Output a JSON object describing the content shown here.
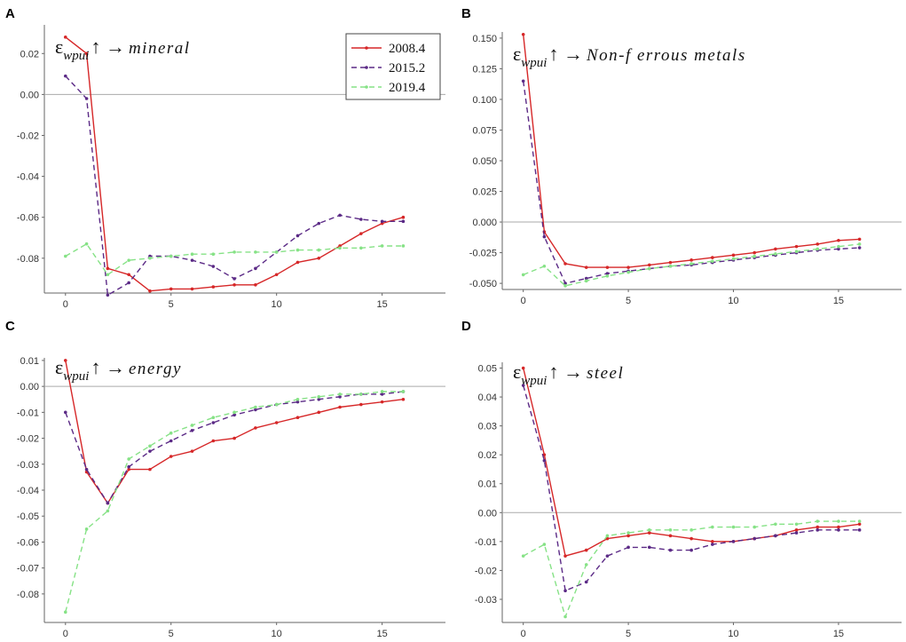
{
  "chart_data": [
    {
      "panel": "A",
      "type": "line",
      "title": "ε",
      "title_subscript": "wpui",
      "title_arrow": "↑ →",
      "title_target": "mineral",
      "xlim": [
        -1,
        18
      ],
      "ylim": [
        -0.097,
        0.034
      ],
      "x_ticks": [
        0,
        5,
        10,
        15
      ],
      "y_ticks": [
        0.02,
        0.0,
        -0.02,
        -0.04,
        -0.06,
        -0.08
      ],
      "y_tick_labels": [
        "0.02",
        "0.00",
        "-0.02",
        "-0.04",
        "-0.06",
        "-0.08"
      ],
      "x": [
        0,
        1,
        2,
        3,
        4,
        5,
        6,
        7,
        8,
        9,
        10,
        11,
        12,
        13,
        14,
        15,
        16
      ],
      "series": [
        {
          "name": "2008.4",
          "color": "#d62728",
          "dash": "",
          "values": [
            0.028,
            0.02,
            -0.085,
            -0.088,
            -0.096,
            -0.095,
            -0.095,
            -0.094,
            -0.093,
            -0.093,
            -0.088,
            -0.082,
            -0.08,
            -0.074,
            -0.068,
            -0.063,
            -0.06
          ]
        },
        {
          "name": "2015.2",
          "color": "#5b2a86",
          "dash": "6,4",
          "values": [
            0.009,
            -0.002,
            -0.098,
            -0.092,
            -0.079,
            -0.079,
            -0.081,
            -0.084,
            -0.09,
            -0.085,
            -0.077,
            -0.069,
            -0.063,
            -0.059,
            -0.061,
            -0.062,
            -0.062
          ]
        },
        {
          "name": "2019.4",
          "color": "#86e286",
          "dash": "6,4",
          "values": [
            -0.079,
            -0.073,
            -0.088,
            -0.081,
            -0.08,
            -0.079,
            -0.078,
            -0.078,
            -0.077,
            -0.077,
            -0.077,
            -0.076,
            -0.076,
            -0.075,
            -0.075,
            -0.074,
            -0.074
          ]
        }
      ],
      "legend": [
        "2008.4",
        "2015.2",
        "2019.4"
      ]
    },
    {
      "panel": "B",
      "type": "line",
      "title": "ε",
      "title_subscript": "wpui",
      "title_arrow": "↑ →",
      "title_target": "Non-f errous metals",
      "xlim": [
        -1,
        18
      ],
      "ylim": [
        -0.055,
        0.155
      ],
      "x_ticks": [
        0,
        5,
        10,
        15
      ],
      "y_ticks": [
        0.15,
        0.125,
        0.1,
        0.075,
        0.05,
        0.025,
        0.0,
        -0.025,
        -0.05
      ],
      "y_tick_labels": [
        "0.150",
        "0.125",
        "0.100",
        "0.075",
        "0.050",
        "0.025",
        "0.000",
        "-0.025",
        "-0.050"
      ],
      "x": [
        0,
        1,
        2,
        3,
        4,
        5,
        6,
        7,
        8,
        9,
        10,
        11,
        12,
        13,
        14,
        15,
        16
      ],
      "series": [
        {
          "name": "2008.4",
          "color": "#d62728",
          "dash": "",
          "values": [
            0.153,
            -0.008,
            -0.034,
            -0.037,
            -0.037,
            -0.037,
            -0.035,
            -0.033,
            -0.031,
            -0.029,
            -0.027,
            -0.025,
            -0.022,
            -0.02,
            -0.018,
            -0.015,
            -0.014
          ]
        },
        {
          "name": "2015.2",
          "color": "#5b2a86",
          "dash": "6,4",
          "values": [
            0.115,
            -0.012,
            -0.05,
            -0.046,
            -0.042,
            -0.04,
            -0.038,
            -0.036,
            -0.035,
            -0.033,
            -0.031,
            -0.029,
            -0.027,
            -0.025,
            -0.023,
            -0.022,
            -0.021
          ]
        },
        {
          "name": "2019.4",
          "color": "#86e286",
          "dash": "6,4",
          "values": [
            -0.043,
            -0.036,
            -0.052,
            -0.048,
            -0.044,
            -0.041,
            -0.038,
            -0.036,
            -0.034,
            -0.032,
            -0.03,
            -0.028,
            -0.026,
            -0.024,
            -0.022,
            -0.02,
            -0.018
          ]
        }
      ]
    },
    {
      "panel": "C",
      "type": "line",
      "title": "ε",
      "title_subscript": "wpui",
      "title_arrow": "↑ →",
      "title_target": "energy",
      "xlim": [
        -1,
        18
      ],
      "ylim": [
        -0.091,
        0.011
      ],
      "x_ticks": [
        0,
        5,
        10,
        15
      ],
      "y_ticks": [
        0.01,
        0.0,
        -0.01,
        -0.02,
        -0.03,
        -0.04,
        -0.05,
        -0.06,
        -0.07,
        -0.08
      ],
      "y_tick_labels": [
        "0.01",
        "0.00",
        "-0.01",
        "-0.02",
        "-0.03",
        "-0.04",
        "-0.05",
        "-0.06",
        "-0.07",
        "-0.08"
      ],
      "x": [
        0,
        1,
        2,
        3,
        4,
        5,
        6,
        7,
        8,
        9,
        10,
        11,
        12,
        13,
        14,
        15,
        16
      ],
      "series": [
        {
          "name": "2008.4",
          "color": "#d62728",
          "dash": "",
          "values": [
            0.01,
            -0.033,
            -0.045,
            -0.032,
            -0.032,
            -0.027,
            -0.025,
            -0.021,
            -0.02,
            -0.016,
            -0.014,
            -0.012,
            -0.01,
            -0.008,
            -0.007,
            -0.006,
            -0.005
          ]
        },
        {
          "name": "2015.2",
          "color": "#5b2a86",
          "dash": "6,4",
          "values": [
            -0.01,
            -0.032,
            -0.045,
            -0.031,
            -0.025,
            -0.021,
            -0.017,
            -0.014,
            -0.011,
            -0.009,
            -0.007,
            -0.006,
            -0.005,
            -0.004,
            -0.003,
            -0.003,
            -0.002
          ]
        },
        {
          "name": "2019.4",
          "color": "#86e286",
          "dash": "6,4",
          "values": [
            -0.087,
            -0.055,
            -0.048,
            -0.028,
            -0.023,
            -0.018,
            -0.015,
            -0.012,
            -0.01,
            -0.008,
            -0.007,
            -0.005,
            -0.004,
            -0.003,
            -0.003,
            -0.002,
            -0.002
          ]
        }
      ]
    },
    {
      "panel": "D",
      "type": "line",
      "title": "ε",
      "title_subscript": "wpui",
      "title_arrow": "↑ →",
      "title_target": "steel",
      "xlim": [
        -1,
        18
      ],
      "ylim": [
        -0.038,
        0.052
      ],
      "x_ticks": [
        0,
        5,
        10,
        15
      ],
      "y_ticks": [
        0.05,
        0.04,
        0.03,
        0.02,
        0.01,
        0.0,
        -0.01,
        -0.02,
        -0.03
      ],
      "y_tick_labels": [
        "0.05",
        "0.04",
        "0.03",
        "0.02",
        "0.01",
        "0.00",
        "-0.01",
        "-0.02",
        "-0.03"
      ],
      "x": [
        0,
        1,
        2,
        3,
        4,
        5,
        6,
        7,
        8,
        9,
        10,
        11,
        12,
        13,
        14,
        15,
        16
      ],
      "series": [
        {
          "name": "2008.4",
          "color": "#d62728",
          "dash": "",
          "values": [
            0.05,
            0.02,
            -0.015,
            -0.013,
            -0.009,
            -0.008,
            -0.007,
            -0.008,
            -0.009,
            -0.01,
            -0.01,
            -0.009,
            -0.008,
            -0.006,
            -0.005,
            -0.005,
            -0.004
          ]
        },
        {
          "name": "2015.2",
          "color": "#5b2a86",
          "dash": "6,4",
          "values": [
            0.044,
            0.018,
            -0.027,
            -0.024,
            -0.015,
            -0.012,
            -0.012,
            -0.013,
            -0.013,
            -0.011,
            -0.01,
            -0.009,
            -0.008,
            -0.007,
            -0.006,
            -0.006,
            -0.006
          ]
        },
        {
          "name": "2019.4",
          "color": "#86e286",
          "dash": "6,4",
          "values": [
            -0.015,
            -0.011,
            -0.036,
            -0.018,
            -0.008,
            -0.007,
            -0.006,
            -0.006,
            -0.006,
            -0.005,
            -0.005,
            -0.005,
            -0.004,
            -0.004,
            -0.003,
            -0.003,
            -0.003
          ]
        }
      ]
    }
  ]
}
